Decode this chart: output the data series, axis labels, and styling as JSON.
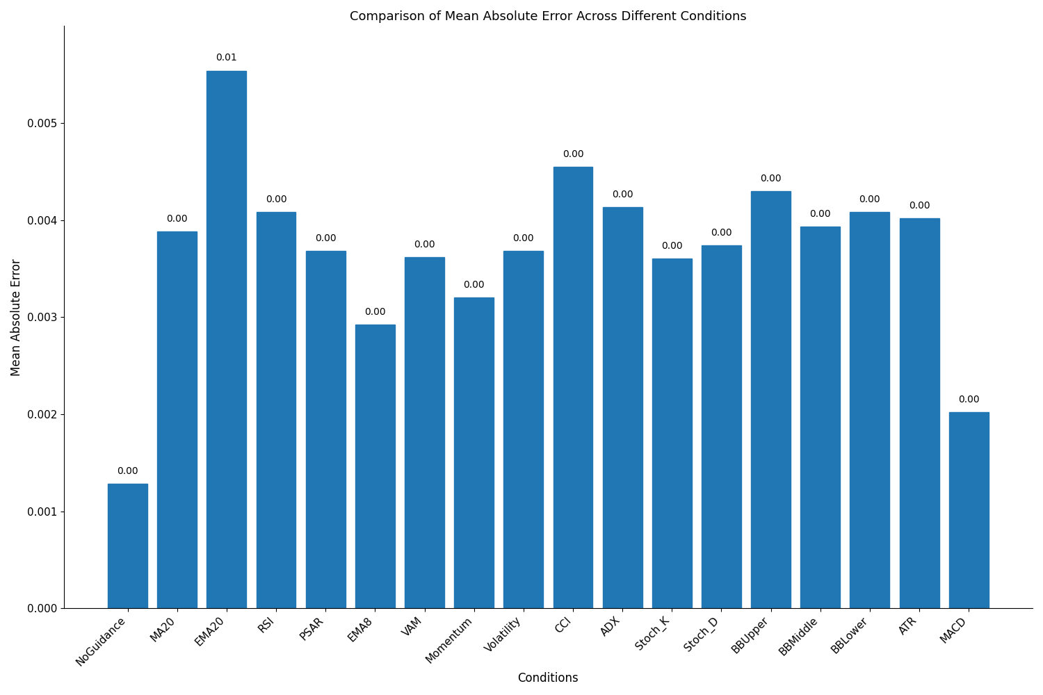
{
  "title": "Comparison of Mean Absolute Error Across Different Conditions",
  "xlabel": "Conditions",
  "ylabel": "Mean Absolute Error",
  "categories": [
    "NoGuidance",
    "MA20",
    "EMA20",
    "RSI",
    "PSAR",
    "EMA8",
    "VAM",
    "Momentum",
    "Volatility",
    "CCI",
    "ADX",
    "Stoch_K",
    "Stoch_D",
    "BBUpper",
    "BBMiddle",
    "BBLower",
    "ATR",
    "MACD"
  ],
  "values": [
    0.00128,
    0.00388,
    0.00554,
    0.00408,
    0.00368,
    0.00292,
    0.00362,
    0.0032,
    0.00368,
    0.00455,
    0.00413,
    0.0036,
    0.00374,
    0.0043,
    0.00393,
    0.00408,
    0.00402,
    0.00202
  ],
  "bar_color": "#2077B4",
  "bar_labels": [
    "0.00",
    "0.00",
    "0.01",
    "0.00",
    "0.00",
    "0.00",
    "0.00",
    "0.00",
    "0.00",
    "0.00",
    "0.00",
    "0.00",
    "0.00",
    "0.00",
    "0.00",
    "0.00",
    "0.00",
    "0.00"
  ],
  "ylim": [
    0,
    0.006
  ],
  "yticks": [
    0.0,
    0.001,
    0.002,
    0.003,
    0.004,
    0.005
  ],
  "figsize": [
    15.0,
    10.0
  ],
  "dpi": 100,
  "title_fontsize": 13,
  "label_fontsize": 12,
  "tick_fontsize": 11,
  "bar_label_fontsize": 10,
  "bar_width": 0.8,
  "background_color": "#ffffff"
}
